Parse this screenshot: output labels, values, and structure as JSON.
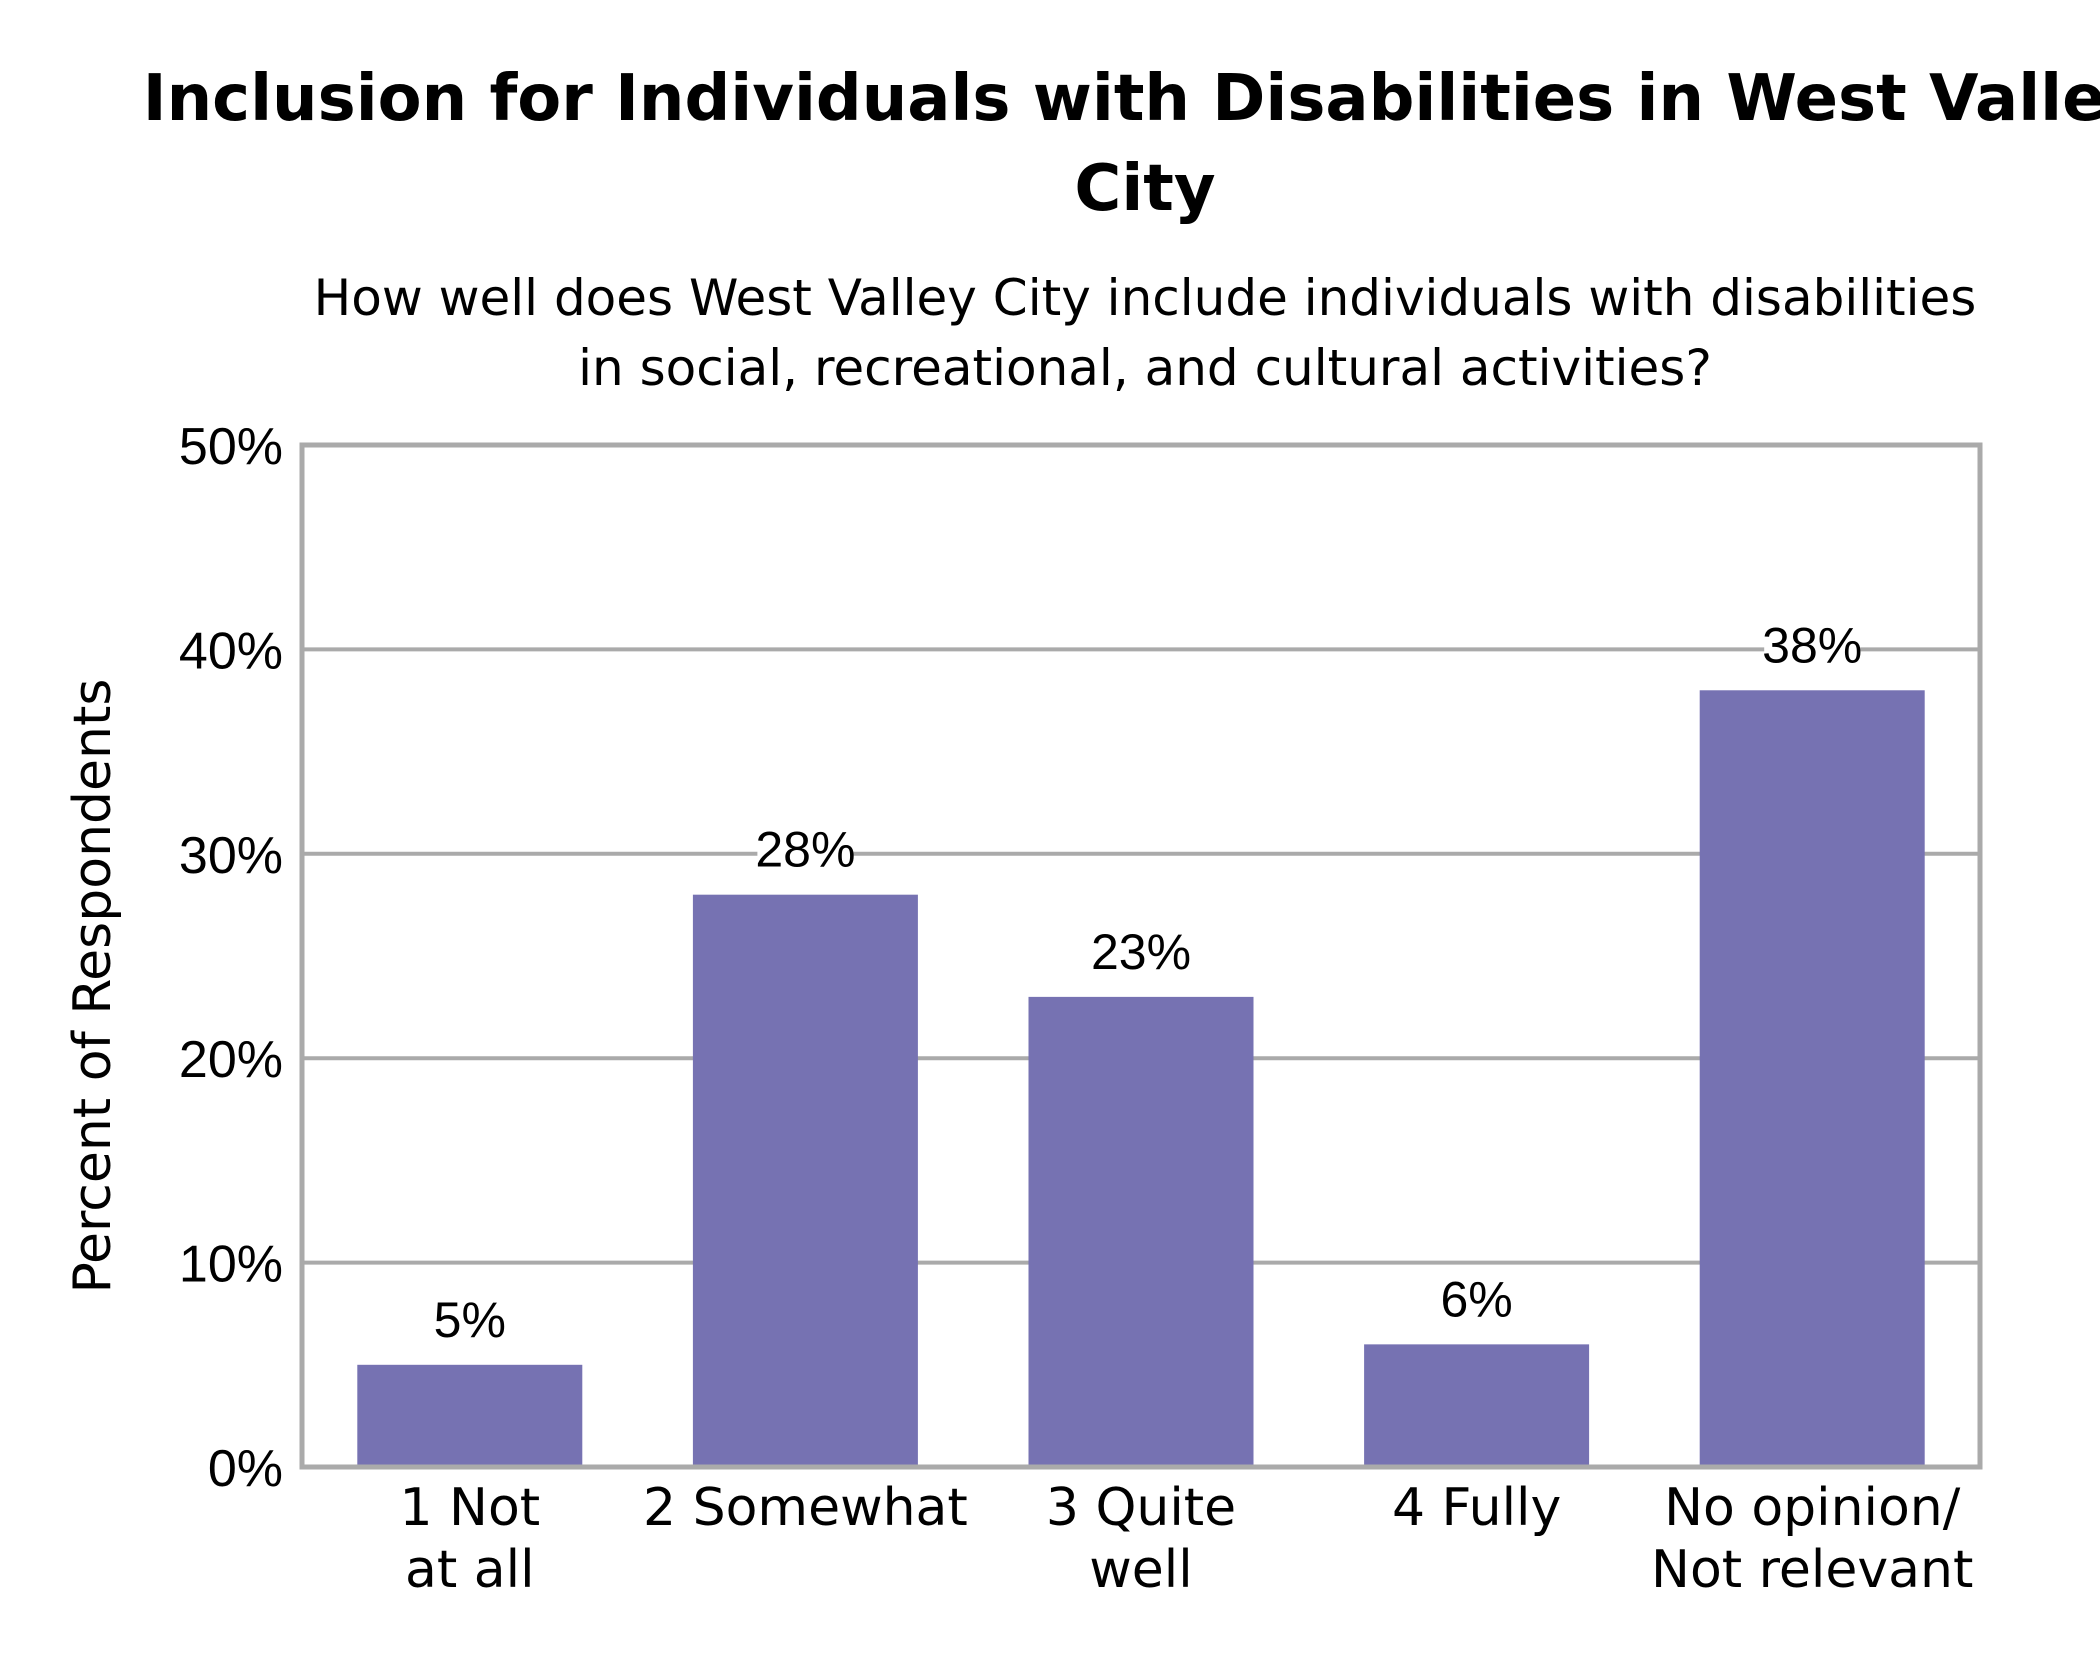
{
  "chart_data": {
    "type": "bar",
    "title_lines": [
      "Inclusion for Individuals with Disabilities in West Valley",
      "City"
    ],
    "subtitle_lines": [
      "How well does West Valley City include individuals with disabilities",
      "in social, recreational, and cultural activities?"
    ],
    "ylabel": "Percent of Respondents",
    "xlabel": "",
    "ylim": [
      0,
      50
    ],
    "yticks": [
      0,
      10,
      20,
      30,
      40,
      50
    ],
    "ytick_labels": [
      "0%",
      "10%",
      "20%",
      "30%",
      "40%",
      "50%"
    ],
    "categories": [
      [
        "1 Not",
        "at all"
      ],
      [
        "2 Somewhat"
      ],
      [
        "3 Quite",
        "well"
      ],
      [
        "4 Fully"
      ],
      [
        "No opinion/",
        "Not relevant"
      ]
    ],
    "values": [
      5,
      28,
      23,
      6,
      38
    ],
    "data_labels": [
      "5%",
      "28%",
      "23%",
      "6%",
      "38%"
    ],
    "grid": true,
    "bar_color": "#7672b2",
    "grid_color": "#aaaaaa"
  }
}
